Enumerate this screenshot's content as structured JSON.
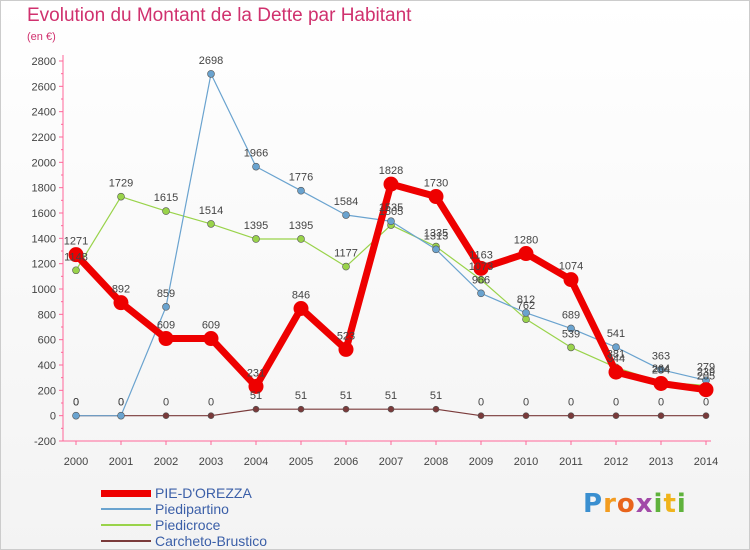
{
  "title": "Evolution du Montant de la Dette par Habitant",
  "subtitle": "(en €)",
  "brand": {
    "letters": [
      "P",
      "r",
      "o",
      "x",
      "i",
      "t",
      "i"
    ],
    "colors": [
      "#3a8fd0",
      "#f39c1f",
      "#e8641b",
      "#a24aa8",
      "#5fb23c",
      "#f0b41c",
      "#5fb23c"
    ]
  },
  "chart_data": {
    "type": "line",
    "x": [
      "2000",
      "2001",
      "2002",
      "2003",
      "2004",
      "2005",
      "2006",
      "2007",
      "2008",
      "2009",
      "2010",
      "2011",
      "2012",
      "2013",
      "2014"
    ],
    "ylim": [
      -200,
      2800
    ],
    "yticks": [
      -200,
      0,
      200,
      400,
      600,
      800,
      1000,
      1200,
      1400,
      1600,
      1800,
      2000,
      2200,
      2400,
      2600,
      2800
    ],
    "grid": false,
    "legend_position": "bottom-left",
    "series": [
      {
        "name": "Carcheto-Brustico",
        "color": "#7a3a3a",
        "width": 1.2,
        "marker_r": 3,
        "values": [
          0,
          0,
          0,
          0,
          51,
          51,
          51,
          51,
          51,
          0,
          0,
          0,
          0,
          0,
          0
        ]
      },
      {
        "name": "Piedicroce",
        "color": "#99d34a",
        "width": 1.2,
        "marker_r": 3.5,
        "values": [
          1148,
          1729,
          1615,
          1514,
          1395,
          1395,
          1177,
          1505,
          1335,
          1073,
          762,
          539,
          381,
          264,
          239
        ]
      },
      {
        "name": "Piedipartino",
        "color": "#6aa3cf",
        "width": 1.2,
        "marker_r": 3.5,
        "values": [
          0,
          0,
          859,
          2698,
          1966,
          1776,
          1584,
          1535,
          1313,
          966,
          812,
          689,
          541,
          363,
          279
        ]
      },
      {
        "name": "PIE-D'OREZZA",
        "color": "#ee0000",
        "width": 7,
        "marker_r": 7.5,
        "values": [
          1271,
          892,
          609,
          609,
          231,
          846,
          523,
          1828,
          1730,
          1163,
          1280,
          1074,
          344,
          254,
          205
        ]
      }
    ],
    "legend_order": [
      "PIE-D'OREZZA",
      "Piedipartino",
      "Piedicroce",
      "Carcheto-Brustico"
    ]
  }
}
